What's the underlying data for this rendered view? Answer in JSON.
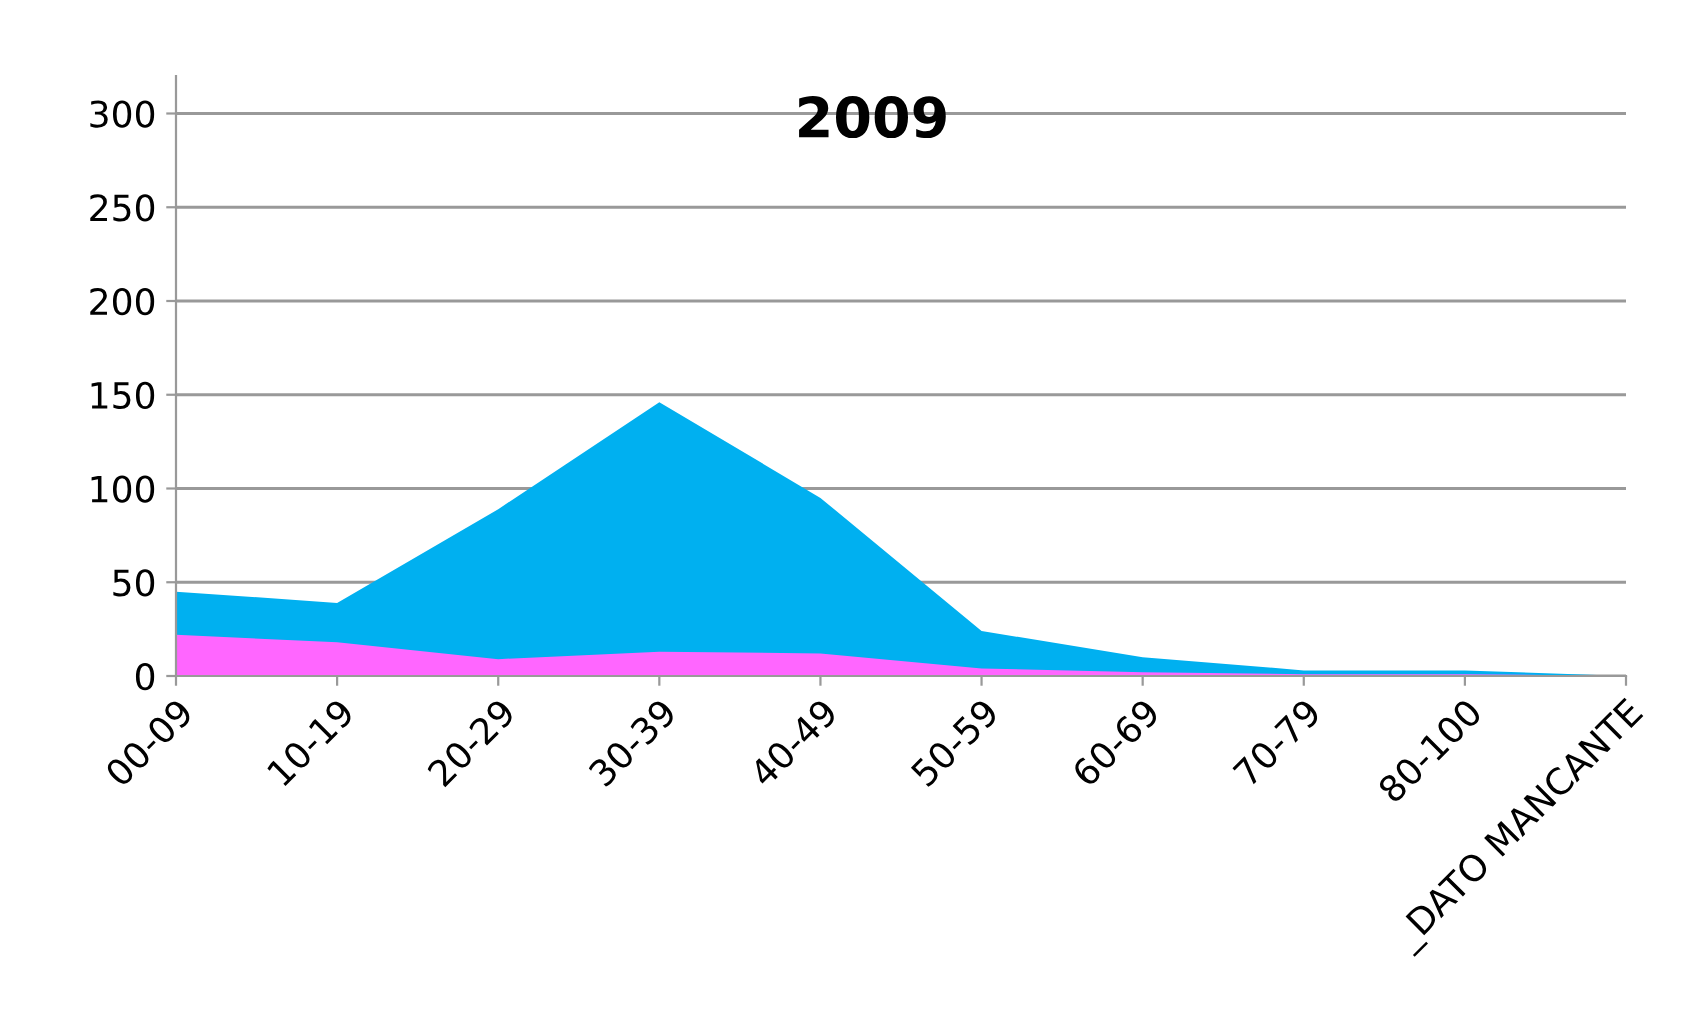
{
  "chart_data": {
    "type": "area",
    "title": "2009",
    "categories": [
      "00-09",
      "10-19",
      "20-29",
      "30-39",
      "40-49",
      "50-59",
      "60-69",
      "70-79",
      "80-100",
      "_DATO MANCANTE"
    ],
    "series": [
      {
        "color": "#00b0f0",
        "values": [
          45,
          39,
          89,
          146,
          95,
          24,
          10,
          3,
          3,
          0
        ]
      },
      {
        "color": "#ff66ff",
        "values": [
          22,
          18,
          9,
          13,
          12,
          4,
          2,
          1,
          1,
          0
        ]
      }
    ],
    "ylim": [
      0,
      320
    ],
    "yticks": [
      0,
      50,
      100,
      150,
      200,
      250,
      300
    ],
    "grid": "y"
  }
}
